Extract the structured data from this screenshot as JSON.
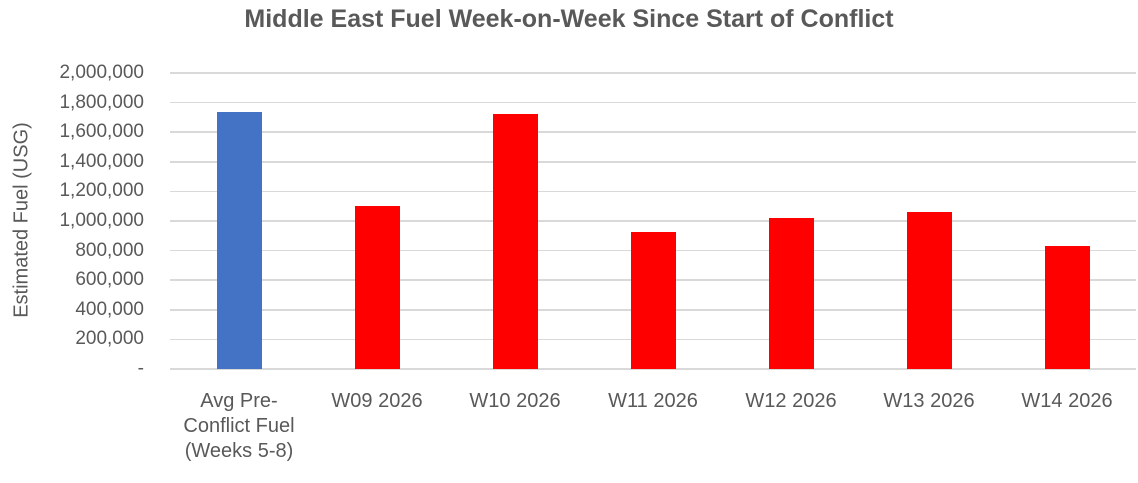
{
  "chart_data": {
    "type": "bar",
    "title": "Middle East Fuel Week-on-Week Since Start of Conflict",
    "xlabel": "",
    "ylabel": "Estimated Fuel (USG)",
    "categories": [
      "Avg Pre-Conflict Fuel (Weeks 5-8)",
      "W09 2026",
      "W10 2026",
      "W11 2026",
      "W12 2026",
      "W13 2026",
      "W14 2026"
    ],
    "category_display_lines": [
      [
        "Avg Pre-",
        "Conflict Fuel",
        "(Weeks 5-8)"
      ],
      [
        "W09 2026"
      ],
      [
        "W10 2026"
      ],
      [
        "W11 2026"
      ],
      [
        "W12 2026"
      ],
      [
        "W13 2026"
      ],
      [
        "W14 2026"
      ]
    ],
    "values": [
      1735000,
      1100000,
      1725000,
      925000,
      1020000,
      1060000,
      830000
    ],
    "bar_colors": [
      "#4472C4",
      "#FF0000",
      "#FF0000",
      "#FF0000",
      "#FF0000",
      "#FF0000",
      "#FF0000"
    ],
    "ylim": [
      0,
      2000000
    ],
    "ytick_step": 200000,
    "ytick_labels_top_to_bottom": [
      "2,000,000",
      "1,800,000",
      "1,600,000",
      "1,400,000",
      "1,200,000",
      "1,000,000",
      "800,000",
      "600,000",
      "400,000",
      "200,000",
      "-"
    ],
    "grid": true,
    "legend": false,
    "gridline_color": "#D9D9D9",
    "text_color": "#595959",
    "title_color": "#595959",
    "background_color": "#FFFFFF"
  }
}
